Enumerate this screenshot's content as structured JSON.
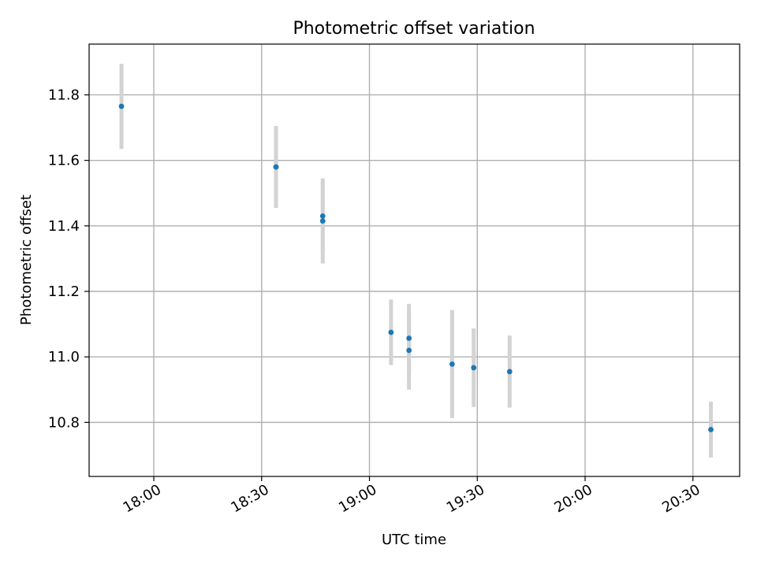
{
  "chart_data": {
    "type": "scatter",
    "title": "Photometric offset variation",
    "xlabel": "UTC time",
    "ylabel": "Photometric offset",
    "grid": true,
    "xlim": [
      "17:42",
      "20:43"
    ],
    "ylim": [
      10.635,
      11.955
    ],
    "x_ticks": [
      "18:00",
      "18:30",
      "19:00",
      "19:30",
      "20:00",
      "20:30"
    ],
    "y_ticks": [
      "10.8",
      "11.0",
      "11.2",
      "11.4",
      "11.6",
      "11.8"
    ],
    "series": [
      {
        "marker_color": "#1f77b4",
        "errorbar_color": "#d3d3d3",
        "points": [
          {
            "x": "17:51",
            "y": 11.765,
            "err": 0.13
          },
          {
            "x": "18:34",
            "y": 11.58,
            "err": 0.125
          },
          {
            "x": "18:34",
            "y": 11.58,
            "err": 0.125
          },
          {
            "x": "18:47",
            "y": 11.43,
            "err": 0.11
          },
          {
            "x": "18:47",
            "y": 11.415,
            "err": 0.13
          },
          {
            "x": "19:06",
            "y": 11.075,
            "err": 0.1
          },
          {
            "x": "19:11",
            "y": 11.057,
            "err": 0.105
          },
          {
            "x": "19:11",
            "y": 11.02,
            "err": 0.12
          },
          {
            "x": "19:23",
            "y": 10.978,
            "err": 0.165
          },
          {
            "x": "19:29",
            "y": 10.967,
            "err": 0.12
          },
          {
            "x": "19:39",
            "y": 10.955,
            "err": 0.11
          },
          {
            "x": "20:35",
            "y": 10.778,
            "err": 0.085
          }
        ]
      }
    ]
  }
}
